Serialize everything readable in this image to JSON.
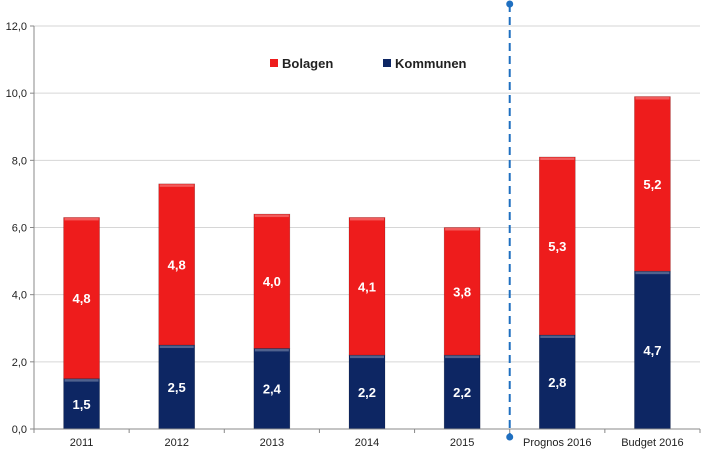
{
  "chart_data": {
    "type": "bar",
    "stacked": true,
    "categories": [
      "2011",
      "2012",
      "2013",
      "2014",
      "2015",
      "Prognos 2016",
      "Budget 2016"
    ],
    "series": [
      {
        "name": "Kommunen",
        "values": [
          1.5,
          2.5,
          2.4,
          2.2,
          2.2,
          2.8,
          4.7
        ],
        "labels": [
          "1,5",
          "2,5",
          "2,4",
          "2,2",
          "2,2",
          "2,8",
          "4,7"
        ],
        "color": "#0d2663"
      },
      {
        "name": "Bolagen",
        "values": [
          4.8,
          4.8,
          4.0,
          4.1,
          3.8,
          5.3,
          5.2
        ],
        "labels": [
          "4,8",
          "4,8",
          "4,0",
          "4,1",
          "3,8",
          "5,3",
          "5,2"
        ],
        "color": "#ee1c1c"
      }
    ],
    "legend": {
      "position": "top-center",
      "order": [
        "Bolagen",
        "Kommunen"
      ]
    },
    "ylim": [
      0,
      12
    ],
    "yticks": [
      0,
      2,
      4,
      6,
      8,
      10,
      12
    ],
    "ytick_labels": [
      "0,0",
      "2,0",
      "4,0",
      "6,0",
      "8,0",
      "10,0",
      "12,0"
    ],
    "grid": true,
    "divider": {
      "after_category": "2015",
      "style": "dashed",
      "color": "#1f6fc0"
    },
    "title": "",
    "xlabel": "",
    "ylabel": ""
  }
}
